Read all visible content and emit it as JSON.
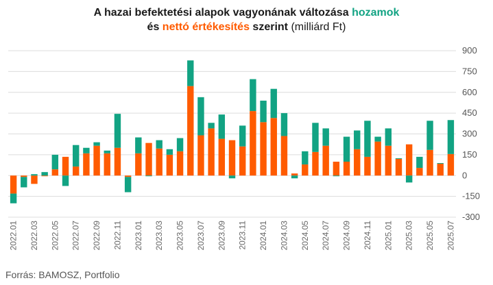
{
  "title": {
    "line1_main": "A hazai befektetési alapok vagyonának változása",
    "line1_highlight": "hozamok",
    "line2_start": "és",
    "line2_highlight": "nettó értékesítés",
    "line2_main": "szerint",
    "line2_unit": "(milliárd Ft)"
  },
  "source": "Forrás: BAMOSZ, Portfolio",
  "chart_data": {
    "type": "bar",
    "stacked": true,
    "ylim": [
      -300,
      900
    ],
    "yticks": [
      -300,
      -150,
      0,
      150,
      300,
      450,
      600,
      750,
      900
    ],
    "y_axis_side": "right",
    "grid": true,
    "colors": {
      "hozamok": "#12a383",
      "netto_ertekesites": "#ff5b00"
    },
    "categories": [
      "2022.01",
      "2022.02",
      "2022.03",
      "2022.04",
      "2022.05",
      "2022.06",
      "2022.07",
      "2022.08",
      "2022.09",
      "2022.10",
      "2022.11",
      "2022.12",
      "2023.01",
      "2023.02",
      "2023.03",
      "2023.04",
      "2023.05",
      "2023.06",
      "2023.07",
      "2023.08",
      "2023.09",
      "2023.10",
      "2023.11",
      "2023.12",
      "2024.01",
      "2024.02",
      "2024.03",
      "2024.04",
      "2024.05",
      "2024.06",
      "2024.07",
      "2024.08",
      "2024.09",
      "2024.10",
      "2024.11",
      "2024.12",
      "2025.01",
      "2025.02",
      "2025.03",
      "2025.04",
      "2025.05",
      "2025.06",
      "2025.07"
    ],
    "xtick_labels": [
      "2022.01",
      "2022.03",
      "2022.05",
      "2022.07",
      "2022.09",
      "2022.11",
      "2023.01",
      "2023.03",
      "2023.05",
      "2023.07",
      "2023.09",
      "2023.11",
      "2024.01",
      "2024.03",
      "2024.05",
      "2024.07",
      "2024.09",
      "2024.11",
      "2025.01",
      "2025.03",
      "2025.05",
      "2025.07"
    ],
    "series": [
      {
        "key": "netto_ertekesites",
        "values": [
          -130,
          -10,
          -60,
          -5,
          45,
          135,
          65,
          160,
          215,
          160,
          200,
          -10,
          160,
          235,
          195,
          150,
          175,
          645,
          290,
          340,
          265,
          255,
          210,
          465,
          385,
          415,
          285,
          15,
          80,
          170,
          215,
          100,
          100,
          190,
          135,
          245,
          215,
          120,
          225,
          55,
          185,
          85,
          155
        ]
      },
      {
        "key": "hozamok",
        "values": [
          -70,
          -75,
          10,
          25,
          105,
          -75,
          155,
          40,
          25,
          20,
          245,
          -110,
          115,
          -5,
          60,
          40,
          95,
          185,
          275,
          40,
          175,
          -20,
          150,
          230,
          155,
          210,
          165,
          -20,
          95,
          210,
          125,
          -5,
          180,
          135,
          260,
          35,
          125,
          5,
          -50,
          80,
          210,
          5,
          245
        ]
      }
    ]
  }
}
